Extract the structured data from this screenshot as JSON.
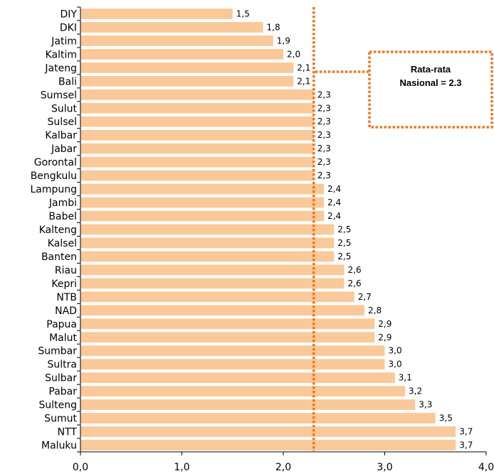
{
  "chart_data": {
    "type": "bar",
    "orientation": "horizontal",
    "categories": [
      "DIY",
      "DKI",
      "Jatim",
      "Kaltim",
      "Jateng",
      "Bali",
      "Sumsel",
      "Sulut",
      "Sulsel",
      "Kalbar",
      "Jabar",
      "Gorontal",
      "Bengkulu",
      "Lampung",
      "Jambi",
      "Babel",
      "Kalteng",
      "Kalsel",
      "Banten",
      "Riau",
      "Kepri",
      "NTB",
      "NAD",
      "Papua",
      "Malut",
      "Sumbar",
      "Sultra",
      "Sulbar",
      "Pabar",
      "Sulteng",
      "Sumut",
      "NTT",
      "Maluku"
    ],
    "values": [
      1.5,
      1.8,
      1.9,
      2.0,
      2.1,
      2.1,
      2.3,
      2.3,
      2.3,
      2.3,
      2.3,
      2.3,
      2.3,
      2.4,
      2.4,
      2.4,
      2.5,
      2.5,
      2.5,
      2.6,
      2.6,
      2.7,
      2.8,
      2.9,
      2.9,
      3.0,
      3.0,
      3.1,
      3.2,
      3.3,
      3.5,
      3.7,
      3.7
    ],
    "value_labels": [
      "1,5",
      "1,8",
      "1,9",
      "2,0",
      "2,1",
      "2,1",
      "2,3",
      "2,3",
      "2,3",
      "2,3",
      "2,3",
      "2,3",
      "2,3",
      "2,4",
      "2,4",
      "2,4",
      "2,5",
      "2,5",
      "2,5",
      "2,6",
      "2,6",
      "2,7",
      "2,8",
      "2,9",
      "2,9",
      "3,0",
      "3,0",
      "3,1",
      "3,2",
      "3,3",
      "3,5",
      "3,7",
      "3,7"
    ],
    "x_ticks": [
      0,
      1,
      2,
      3,
      4
    ],
    "x_tick_labels": [
      "0,0",
      "1,0",
      "2,0",
      "3,0",
      "4,0"
    ],
    "xlim": [
      0,
      4
    ],
    "grid": false,
    "bar_color": "#FAC999",
    "reference_line": {
      "value": 2.3,
      "color": "#F07820",
      "style": "dotted",
      "label_line1": "Rata-rata",
      "label_line2": "Nasional = 2.3"
    }
  }
}
